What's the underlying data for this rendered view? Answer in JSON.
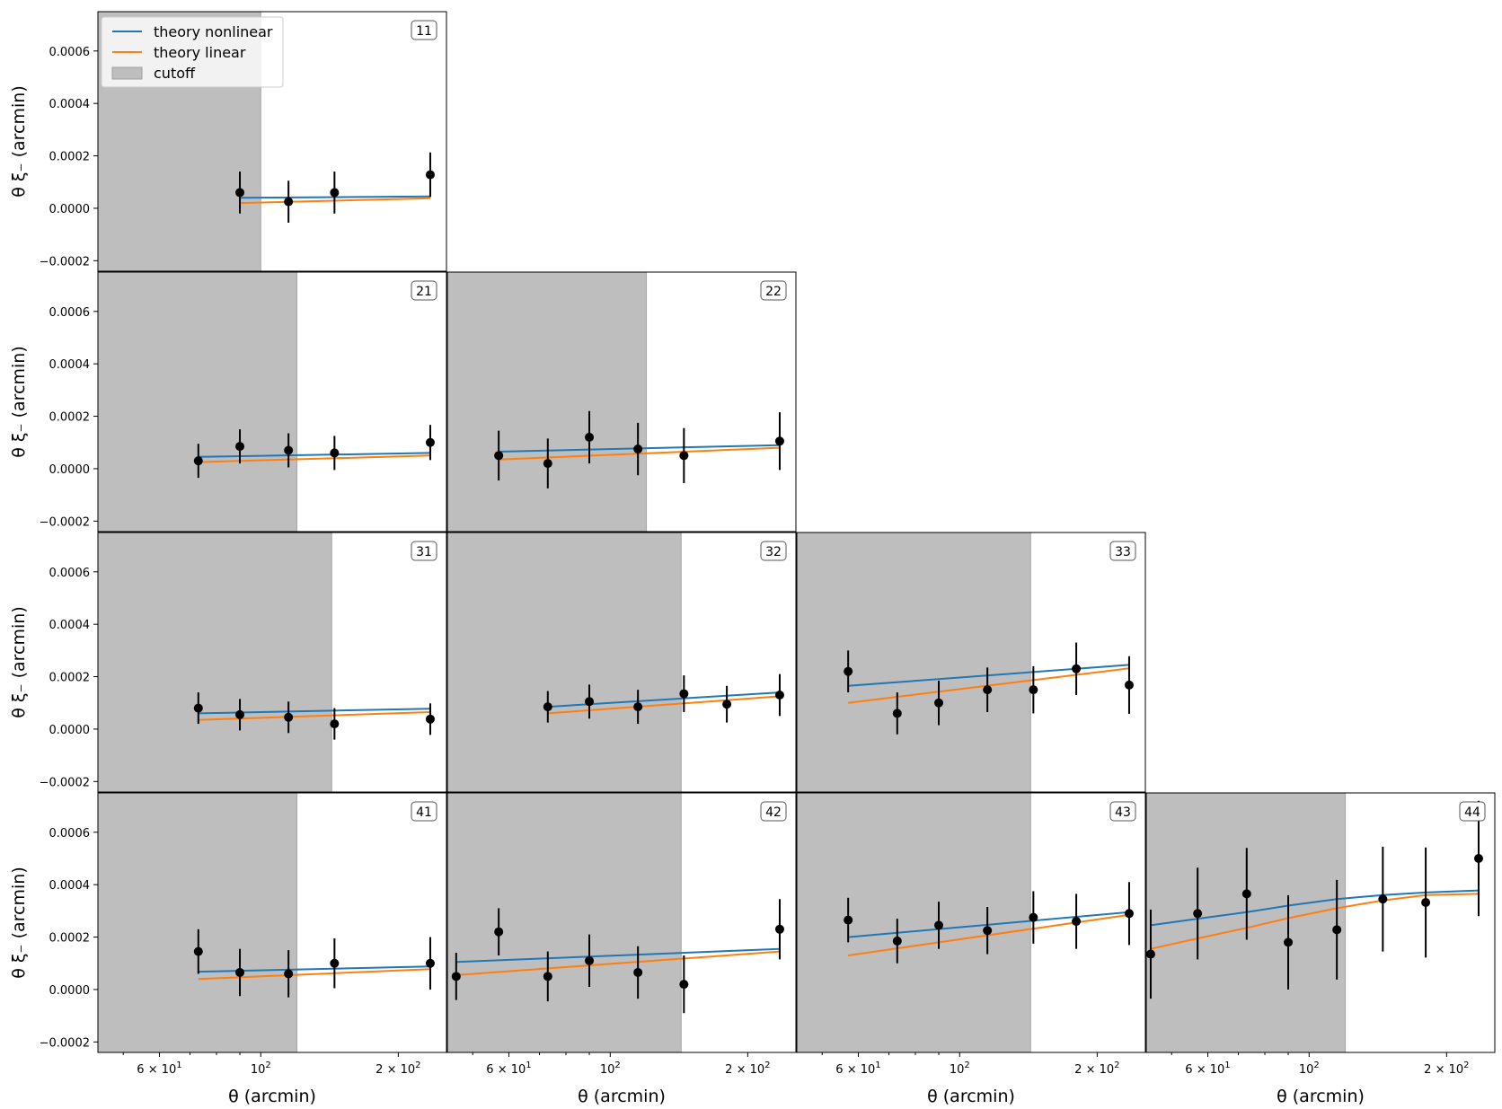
{
  "figure": {
    "ylabel": "θ ξ₋  (arcmin)",
    "xlabel": "θ (arcmin)",
    "xscale": "log",
    "xlim": [
      44,
      255
    ],
    "ylim": [
      -0.00024,
      0.00075
    ],
    "yticks": [
      -0.0002,
      0.0,
      0.0002,
      0.0004,
      0.0006
    ],
    "ytick_labels": [
      "−0.0002",
      "0.0000",
      "0.0002",
      "0.0004",
      "0.0006"
    ],
    "xticks": [
      {
        "value": 60,
        "base": "6 × 10",
        "exp": "1"
      },
      {
        "value": 100,
        "base": "10",
        "exp": "2"
      },
      {
        "value": 200,
        "base": "2 × 10",
        "exp": "2"
      }
    ],
    "colors": {
      "nonlinear": "#1f77b4",
      "linear": "#ff7f0e",
      "cutoff": "#bebebe",
      "data": "#000000"
    },
    "legend": {
      "placement": "top-left of panel 11",
      "entries": [
        {
          "label": "theory nonlinear",
          "kind": "line",
          "color": "#1f77b4"
        },
        {
          "label": "theory linear",
          "kind": "line",
          "color": "#ff7f0e"
        },
        {
          "label": "cutoff",
          "kind": "patch",
          "color": "#bebebe"
        }
      ]
    }
  },
  "chart_data": [
    {
      "type": "line",
      "title": "11",
      "row": 0,
      "col": 0,
      "cutoff": 100,
      "theory_nonlinear": {
        "x": [
          90,
          235
        ],
        "y": [
          4e-05,
          4.5e-05
        ]
      },
      "theory_linear": {
        "x": [
          90,
          235
        ],
        "y": [
          2e-05,
          3.8e-05
        ]
      },
      "points": [
        {
          "x": 90,
          "y": 6e-05,
          "err": 8e-05
        },
        {
          "x": 115,
          "y": 2.5e-05,
          "err": 8e-05
        },
        {
          "x": 145,
          "y": 6e-05,
          "err": 8e-05
        },
        {
          "x": 235,
          "y": 0.000128,
          "err": 8.5e-05
        }
      ]
    },
    {
      "type": "line",
      "title": "21",
      "row": 1,
      "col": 0,
      "cutoff": 120,
      "theory_nonlinear": {
        "x": [
          73,
          235
        ],
        "y": [
          4.5e-05,
          6e-05
        ]
      },
      "theory_linear": {
        "x": [
          73,
          235
        ],
        "y": [
          2.5e-05,
          5e-05
        ]
      },
      "points": [
        {
          "x": 73,
          "y": 3e-05,
          "err": 6.5e-05
        },
        {
          "x": 90,
          "y": 8.5e-05,
          "err": 6.5e-05
        },
        {
          "x": 115,
          "y": 7e-05,
          "err": 6.5e-05
        },
        {
          "x": 145,
          "y": 6e-05,
          "err": 6.5e-05
        },
        {
          "x": 235,
          "y": 0.0001,
          "err": 6.7e-05
        }
      ]
    },
    {
      "type": "line",
      "title": "22",
      "row": 1,
      "col": 1,
      "cutoff": 120,
      "theory_nonlinear": {
        "x": [
          57,
          235
        ],
        "y": [
          6.5e-05,
          9e-05
        ]
      },
      "theory_linear": {
        "x": [
          57,
          235
        ],
        "y": [
          3.5e-05,
          8e-05
        ]
      },
      "points": [
        {
          "x": 57,
          "y": 5e-05,
          "err": 9.5e-05
        },
        {
          "x": 73,
          "y": 2e-05,
          "err": 9.5e-05
        },
        {
          "x": 90,
          "y": 0.00012,
          "err": 0.0001
        },
        {
          "x": 115,
          "y": 7.5e-05,
          "err": 0.0001
        },
        {
          "x": 145,
          "y": 5e-05,
          "err": 0.000105
        },
        {
          "x": 235,
          "y": 0.000105,
          "err": 0.00011
        }
      ]
    },
    {
      "type": "line",
      "title": "31",
      "row": 2,
      "col": 0,
      "cutoff": 143,
      "theory_nonlinear": {
        "x": [
          73,
          235
        ],
        "y": [
          6e-05,
          7.8e-05
        ]
      },
      "theory_linear": {
        "x": [
          73,
          235
        ],
        "y": [
          3.5e-05,
          6.5e-05
        ]
      },
      "points": [
        {
          "x": 73,
          "y": 8e-05,
          "err": 6e-05
        },
        {
          "x": 90,
          "y": 5.5e-05,
          "err": 6e-05
        },
        {
          "x": 115,
          "y": 4.5e-05,
          "err": 6e-05
        },
        {
          "x": 145,
          "y": 2e-05,
          "err": 6e-05
        },
        {
          "x": 235,
          "y": 3.8e-05,
          "err": 6e-05
        }
      ]
    },
    {
      "type": "line",
      "title": "32",
      "row": 2,
      "col": 1,
      "cutoff": 143,
      "theory_nonlinear": {
        "x": [
          73,
          235
        ],
        "y": [
          8.5e-05,
          0.00014
        ]
      },
      "theory_linear": {
        "x": [
          73,
          235
        ],
        "y": [
          6e-05,
          0.000125
        ]
      },
      "points": [
        {
          "x": 73,
          "y": 8.5e-05,
          "err": 6e-05
        },
        {
          "x": 90,
          "y": 0.000105,
          "err": 6.5e-05
        },
        {
          "x": 115,
          "y": 8.5e-05,
          "err": 6.5e-05
        },
        {
          "x": 145,
          "y": 0.000135,
          "err": 7e-05
        },
        {
          "x": 180,
          "y": 9.5e-05,
          "err": 7e-05
        },
        {
          "x": 235,
          "y": 0.00013,
          "err": 8e-05
        }
      ]
    },
    {
      "type": "line",
      "title": "33",
      "row": 2,
      "col": 2,
      "cutoff": 143,
      "theory_nonlinear": {
        "x": [
          57,
          235
        ],
        "y": [
          0.000165,
          0.000245
        ]
      },
      "theory_linear": {
        "x": [
          57,
          235
        ],
        "y": [
          0.0001,
          0.000232
        ]
      },
      "points": [
        {
          "x": 57,
          "y": 0.00022,
          "err": 8e-05
        },
        {
          "x": 73,
          "y": 6e-05,
          "err": 8e-05
        },
        {
          "x": 90,
          "y": 0.0001,
          "err": 8.5e-05
        },
        {
          "x": 115,
          "y": 0.00015,
          "err": 8.5e-05
        },
        {
          "x": 145,
          "y": 0.00015,
          "err": 9e-05
        },
        {
          "x": 180,
          "y": 0.00023,
          "err": 0.0001
        },
        {
          "x": 235,
          "y": 0.000168,
          "err": 0.00011
        }
      ]
    },
    {
      "type": "line",
      "title": "41",
      "row": 3,
      "col": 0,
      "cutoff": 120,
      "theory_nonlinear": {
        "x": [
          73,
          235
        ],
        "y": [
          6.8e-05,
          8.8e-05
        ]
      },
      "theory_linear": {
        "x": [
          73,
          235
        ],
        "y": [
          4e-05,
          7.8e-05
        ]
      },
      "points": [
        {
          "x": 73,
          "y": 0.000145,
          "err": 8.5e-05
        },
        {
          "x": 90,
          "y": 6.5e-05,
          "err": 9e-05
        },
        {
          "x": 115,
          "y": 6e-05,
          "err": 9e-05
        },
        {
          "x": 145,
          "y": 0.0001,
          "err": 9.5e-05
        },
        {
          "x": 235,
          "y": 0.0001,
          "err": 0.0001
        }
      ]
    },
    {
      "type": "line",
      "title": "42",
      "row": 3,
      "col": 1,
      "cutoff": 143,
      "theory_nonlinear": {
        "x": [
          46,
          235
        ],
        "y": [
          0.000105,
          0.000155
        ]
      },
      "theory_linear": {
        "x": [
          46,
          235
        ],
        "y": [
          5.5e-05,
          0.000145
        ]
      },
      "points": [
        {
          "x": 46,
          "y": 5e-05,
          "err": 9e-05
        },
        {
          "x": 57,
          "y": 0.00022,
          "err": 9e-05
        },
        {
          "x": 73,
          "y": 5e-05,
          "err": 9.5e-05
        },
        {
          "x": 90,
          "y": 0.00011,
          "err": 0.0001
        },
        {
          "x": 115,
          "y": 6.5e-05,
          "err": 0.0001
        },
        {
          "x": 145,
          "y": 2e-05,
          "err": 0.00011
        },
        {
          "x": 235,
          "y": 0.00023,
          "err": 0.000115
        }
      ]
    },
    {
      "type": "line",
      "title": "43",
      "row": 3,
      "col": 2,
      "cutoff": 143,
      "theory_nonlinear": {
        "x": [
          57,
          235
        ],
        "y": [
          0.0002,
          0.000295
        ]
      },
      "theory_linear": {
        "x": [
          57,
          235
        ],
        "y": [
          0.00013,
          0.000285
        ]
      },
      "points": [
        {
          "x": 57,
          "y": 0.000265,
          "err": 8.5e-05
        },
        {
          "x": 73,
          "y": 0.000185,
          "err": 8.5e-05
        },
        {
          "x": 90,
          "y": 0.000245,
          "err": 9e-05
        },
        {
          "x": 115,
          "y": 0.000225,
          "err": 9e-05
        },
        {
          "x": 145,
          "y": 0.000275,
          "err": 0.0001
        },
        {
          "x": 180,
          "y": 0.00026,
          "err": 0.000105
        },
        {
          "x": 235,
          "y": 0.00029,
          "err": 0.00012
        }
      ]
    },
    {
      "type": "line",
      "title": "44",
      "row": 3,
      "col": 3,
      "cutoff": 120,
      "theory_nonlinear": {
        "x": [
          45,
          57,
          73,
          90,
          115,
          145,
          180,
          235
        ],
        "y": [
          0.000245,
          0.00027,
          0.000295,
          0.00032,
          0.000345,
          0.00036,
          0.00037,
          0.000378
        ]
      },
      "theory_linear": {
        "x": [
          45,
          57,
          73,
          90,
          115,
          145,
          180,
          235
        ],
        "y": [
          0.000155,
          0.000195,
          0.000235,
          0.000272,
          0.00031,
          0.00034,
          0.00036,
          0.000365
        ]
      },
      "points": [
        {
          "x": 45,
          "y": 0.000135,
          "err": 0.00017
        },
        {
          "x": 57,
          "y": 0.00029,
          "err": 0.000175
        },
        {
          "x": 73,
          "y": 0.000365,
          "err": 0.000175
        },
        {
          "x": 90,
          "y": 0.00018,
          "err": 0.00018
        },
        {
          "x": 115,
          "y": 0.000228,
          "err": 0.00019
        },
        {
          "x": 145,
          "y": 0.000345,
          "err": 0.0002
        },
        {
          "x": 180,
          "y": 0.000332,
          "err": 0.00021
        },
        {
          "x": 235,
          "y": 0.0005,
          "err": 0.00022
        }
      ]
    }
  ]
}
